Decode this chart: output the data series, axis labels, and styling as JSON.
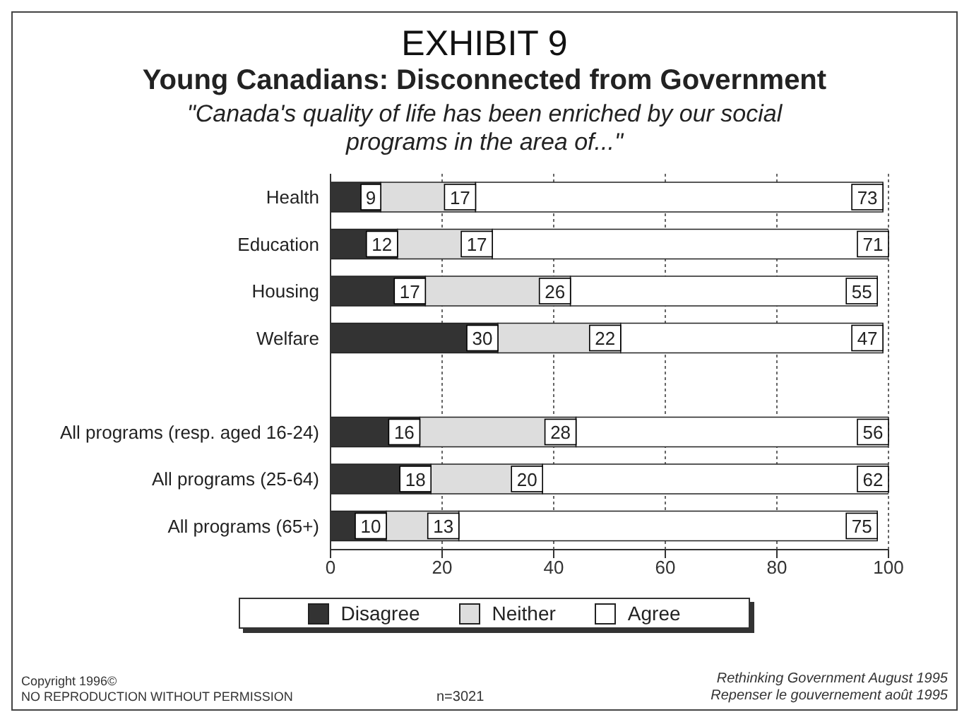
{
  "chart_data": {
    "type": "bar",
    "orientation": "horizontal",
    "stacked": true,
    "title": "EXHIBIT 9",
    "subtitle": "Young Canadians: Disconnected from Government",
    "annotations": [
      "\"Canada's quality of life has been enriched by our social programs in the area of...\"",
      "Copyright 1996©",
      "NO REPRODUCTION WITHOUT PERMISSION",
      "n=3021",
      "Rethinking Government August 1995",
      "Repenser le gouvernement août 1995"
    ],
    "categories": [
      "Health",
      "Education",
      "Housing",
      "Welfare",
      null,
      "All programs (resp. aged 16-24)",
      "All programs (25-64)",
      "All programs (65+)"
    ],
    "series": [
      {
        "name": "Disagree",
        "color": "#333333",
        "values": [
          9,
          12,
          17,
          30,
          null,
          16,
          18,
          10
        ]
      },
      {
        "name": "Neither",
        "color": "#dddddd",
        "values": [
          17,
          17,
          26,
          22,
          null,
          28,
          20,
          13
        ]
      },
      {
        "name": "Agree",
        "color": "#ffffff",
        "values": [
          73,
          71,
          55,
          47,
          null,
          56,
          62,
          75
        ]
      }
    ],
    "xlim": [
      0,
      100
    ],
    "xticks": [
      0,
      20,
      40,
      60,
      80,
      100
    ],
    "grid": "x",
    "legend": "bottom",
    "data_labels": true
  }
}
